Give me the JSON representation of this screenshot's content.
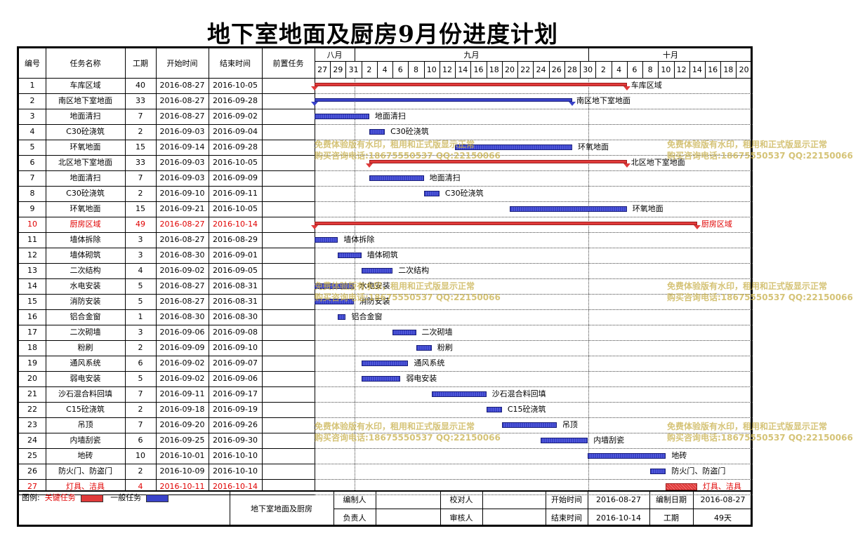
{
  "title": "地下室地面及厨房9月份进度计划",
  "headers": {
    "no": "编号",
    "name": "任务名称",
    "duration": "工期",
    "start": "开始时间",
    "end": "结束时间",
    "pred": "前置任务"
  },
  "months": [
    {
      "label": "八月"
    },
    {
      "label": "九月"
    },
    {
      "label": "十月"
    }
  ],
  "day_ticks": [
    "27",
    "29",
    "31",
    "2",
    "4",
    "6",
    "8",
    "10",
    "12",
    "14",
    "16",
    "18",
    "20",
    "22",
    "24",
    "26",
    "28",
    "30",
    "2",
    "4",
    "6",
    "8",
    "10",
    "12",
    "14",
    "16",
    "18",
    "20"
  ],
  "tasks": [
    {
      "no": "1",
      "name": "车库区域",
      "dur": "40",
      "start": "2016-08-27",
      "end": "2016-10-05",
      "s": 0,
      "d": 40,
      "type": "critical-summary",
      "red": false
    },
    {
      "no": "2",
      "name": "南区地下室地面",
      "dur": "33",
      "start": "2016-08-27",
      "end": "2016-09-28",
      "s": 0,
      "d": 33,
      "type": "summary",
      "red": false
    },
    {
      "no": "3",
      "name": "地面清扫",
      "dur": "7",
      "start": "2016-08-27",
      "end": "2016-09-02",
      "s": 0,
      "d": 7,
      "type": "normal",
      "red": false
    },
    {
      "no": "4",
      "name": "C30砼浇筑",
      "dur": "2",
      "start": "2016-09-03",
      "end": "2016-09-04",
      "s": 7,
      "d": 2,
      "type": "normal",
      "red": false
    },
    {
      "no": "5",
      "name": "环氧地面",
      "dur": "15",
      "start": "2016-09-14",
      "end": "2016-09-28",
      "s": 18,
      "d": 15,
      "type": "normal",
      "red": false
    },
    {
      "no": "6",
      "name": "北区地下室地面",
      "dur": "33",
      "start": "2016-09-03",
      "end": "2016-10-05",
      "s": 7,
      "d": 33,
      "type": "critical-summary",
      "red": false
    },
    {
      "no": "7",
      "name": "地面清扫",
      "dur": "7",
      "start": "2016-09-03",
      "end": "2016-09-09",
      "s": 7,
      "d": 7,
      "type": "normal",
      "red": false
    },
    {
      "no": "8",
      "name": "C30砼浇筑",
      "dur": "2",
      "start": "2016-09-10",
      "end": "2016-09-11",
      "s": 14,
      "d": 2,
      "type": "normal",
      "red": false
    },
    {
      "no": "9",
      "name": "环氧地面",
      "dur": "15",
      "start": "2016-09-21",
      "end": "2016-10-05",
      "s": 25,
      "d": 15,
      "type": "normal",
      "red": false
    },
    {
      "no": "10",
      "name": "厨房区域",
      "dur": "49",
      "start": "2016-08-27",
      "end": "2016-10-14",
      "s": 0,
      "d": 49,
      "type": "critical-summary",
      "red": true
    },
    {
      "no": "11",
      "name": "墙体拆除",
      "dur": "3",
      "start": "2016-08-27",
      "end": "2016-08-29",
      "s": 0,
      "d": 3,
      "type": "normal",
      "red": false
    },
    {
      "no": "12",
      "name": "墙体砌筑",
      "dur": "3",
      "start": "2016-08-30",
      "end": "2016-09-01",
      "s": 3,
      "d": 3,
      "type": "normal",
      "red": false
    },
    {
      "no": "13",
      "name": "二次结构",
      "dur": "4",
      "start": "2016-09-02",
      "end": "2016-09-05",
      "s": 6,
      "d": 4,
      "type": "normal",
      "red": false
    },
    {
      "no": "14",
      "name": "水电安装",
      "dur": "5",
      "start": "2016-08-27",
      "end": "2016-08-31",
      "s": 0,
      "d": 5,
      "type": "normal",
      "red": false
    },
    {
      "no": "15",
      "name": "消防安装",
      "dur": "5",
      "start": "2016-08-27",
      "end": "2016-08-31",
      "s": 0,
      "d": 5,
      "type": "normal",
      "red": false
    },
    {
      "no": "16",
      "name": "铝合金窗",
      "dur": "1",
      "start": "2016-08-30",
      "end": "2016-08-30",
      "s": 3,
      "d": 1,
      "type": "normal",
      "red": false
    },
    {
      "no": "17",
      "name": "二次砌墙",
      "dur": "3",
      "start": "2016-09-06",
      "end": "2016-09-08",
      "s": 10,
      "d": 3,
      "type": "normal",
      "red": false
    },
    {
      "no": "18",
      "name": "粉刷",
      "dur": "2",
      "start": "2016-09-09",
      "end": "2016-09-10",
      "s": 13,
      "d": 2,
      "type": "normal",
      "red": false
    },
    {
      "no": "19",
      "name": "通风系统",
      "dur": "6",
      "start": "2016-09-02",
      "end": "2016-09-07",
      "s": 6,
      "d": 6,
      "type": "normal",
      "red": false
    },
    {
      "no": "20",
      "name": "弱电安装",
      "dur": "5",
      "start": "2016-09-02",
      "end": "2016-09-06",
      "s": 6,
      "d": 5,
      "type": "normal",
      "red": false
    },
    {
      "no": "21",
      "name": "沙石混合料回填",
      "dur": "7",
      "start": "2016-09-11",
      "end": "2016-09-17",
      "s": 15,
      "d": 7,
      "type": "normal",
      "red": false
    },
    {
      "no": "22",
      "name": "C15砼浇筑",
      "dur": "2",
      "start": "2016-09-18",
      "end": "2016-09-19",
      "s": 22,
      "d": 2,
      "type": "normal",
      "red": false
    },
    {
      "no": "23",
      "name": "吊顶",
      "dur": "7",
      "start": "2016-09-20",
      "end": "2016-09-26",
      "s": 24,
      "d": 7,
      "type": "normal",
      "red": false
    },
    {
      "no": "24",
      "name": "内墙刮瓷",
      "dur": "6",
      "start": "2016-09-25",
      "end": "2016-09-30",
      "s": 29,
      "d": 6,
      "type": "normal",
      "red": false
    },
    {
      "no": "25",
      "name": "地砖",
      "dur": "10",
      "start": "2016-10-01",
      "end": "2016-10-10",
      "s": 35,
      "d": 10,
      "type": "normal",
      "red": false
    },
    {
      "no": "26",
      "name": "防火门、防盗门",
      "dur": "2",
      "start": "2016-10-09",
      "end": "2016-10-10",
      "s": 43,
      "d": 2,
      "type": "normal",
      "red": false
    },
    {
      "no": "27",
      "name": "灯具、洁具",
      "dur": "4",
      "start": "2016-10-11",
      "end": "2016-10-14",
      "s": 45,
      "d": 4,
      "type": "critical",
      "red": true
    }
  ],
  "legend": {
    "label": "图例:",
    "critical": "关键任务",
    "normal": "一般任务",
    "critical_color": "#e03a3a",
    "normal_color": "#3a43c9"
  },
  "footer": {
    "project": "地下室地面及厨房",
    "editor_label": "编制人",
    "editor": "",
    "checker_label": "校对人",
    "checker": "",
    "owner_label": "负责人",
    "owner": "",
    "reviewer_label": "审核人",
    "reviewer": "",
    "start_label": "开始时间",
    "start": "2016-08-27",
    "end_label": "结束时间",
    "end": "2016-10-14",
    "date_label": "编制日期",
    "date": "2016-08-27",
    "dur_label": "工期",
    "dur": "49天"
  },
  "watermark": {
    "line1": "免费体验版有水印，租用和正式版显示正常",
    "line2": "购买咨询电话:18675550537 QQ:22150066"
  }
}
